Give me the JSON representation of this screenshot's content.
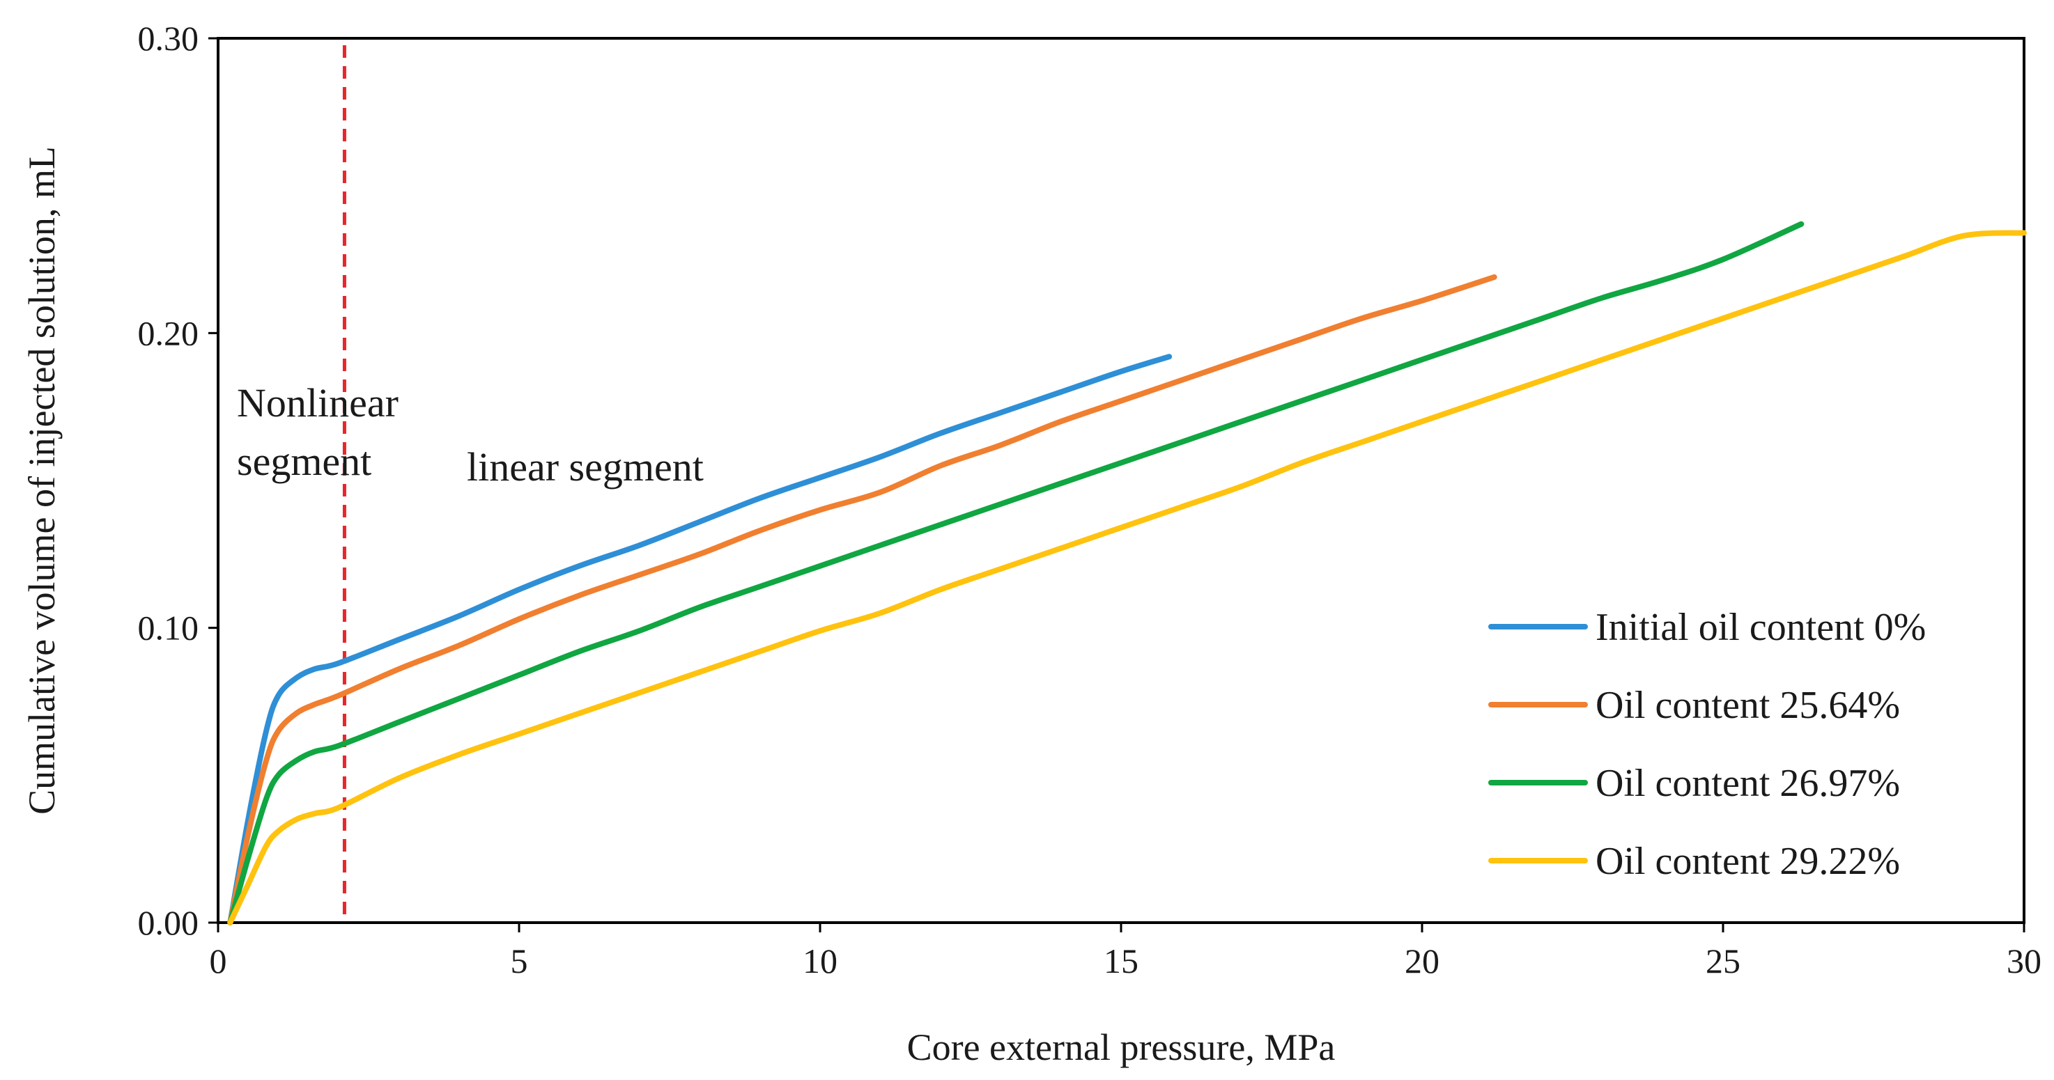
{
  "chart_data": {
    "type": "line",
    "title": "",
    "xlabel": "Core external pressure,  MPa",
    "ylabel": "Cumulative volume of injected solution,   mL",
    "xlim": [
      0,
      30
    ],
    "ylim": [
      0,
      0.3
    ],
    "x_ticks": [
      0,
      5,
      10,
      15,
      20,
      25,
      30
    ],
    "x_tick_labels": [
      "0",
      "5",
      "10",
      "15",
      "20",
      "25",
      "30"
    ],
    "y_ticks": [
      0,
      0.1,
      0.2,
      0.3
    ],
    "y_tick_labels": [
      "0.00",
      "0.10",
      "0.20",
      "0.30"
    ],
    "grid": false,
    "legend_position": "bottom-right",
    "series": [
      {
        "name": "Initial oil content 0%",
        "color": "#2E8FD6",
        "points": [
          [
            0.2,
            0
          ],
          [
            0.5,
            0.035
          ],
          [
            0.8,
            0.065
          ],
          [
            1.0,
            0.077
          ],
          [
            1.3,
            0.083
          ],
          [
            1.6,
            0.086
          ],
          [
            2.0,
            0.088
          ],
          [
            3,
            0.096
          ],
          [
            4,
            0.104
          ],
          [
            5,
            0.113
          ],
          [
            6,
            0.121
          ],
          [
            7,
            0.128
          ],
          [
            8,
            0.136
          ],
          [
            9,
            0.144
          ],
          [
            10,
            0.151
          ],
          [
            11,
            0.158
          ],
          [
            12,
            0.166
          ],
          [
            13,
            0.173
          ],
          [
            14,
            0.18
          ],
          [
            15,
            0.187
          ],
          [
            15.8,
            0.192
          ]
        ]
      },
      {
        "name": "Oil content  25.64%",
        "color": "#F07F30",
        "points": [
          [
            0.2,
            0
          ],
          [
            0.5,
            0.03
          ],
          [
            0.8,
            0.055
          ],
          [
            1.0,
            0.065
          ],
          [
            1.3,
            0.071
          ],
          [
            1.6,
            0.074
          ],
          [
            2.0,
            0.077
          ],
          [
            3,
            0.086
          ],
          [
            4,
            0.094
          ],
          [
            5,
            0.103
          ],
          [
            6,
            0.111
          ],
          [
            7,
            0.118
          ],
          [
            8,
            0.125
          ],
          [
            9,
            0.133
          ],
          [
            10,
            0.14
          ],
          [
            11,
            0.146
          ],
          [
            12,
            0.155
          ],
          [
            13,
            0.162
          ],
          [
            14,
            0.17
          ],
          [
            15,
            0.177
          ],
          [
            16,
            0.184
          ],
          [
            17,
            0.191
          ],
          [
            18,
            0.198
          ],
          [
            19,
            0.205
          ],
          [
            20,
            0.211
          ],
          [
            21.2,
            0.219
          ]
        ]
      },
      {
        "name": "Oil content  26.97%",
        "color": "#10A642",
        "points": [
          [
            0.2,
            0
          ],
          [
            0.5,
            0.022
          ],
          [
            0.8,
            0.042
          ],
          [
            1.0,
            0.05
          ],
          [
            1.3,
            0.055
          ],
          [
            1.6,
            0.058
          ],
          [
            2.0,
            0.06
          ],
          [
            3,
            0.068
          ],
          [
            4,
            0.076
          ],
          [
            5,
            0.084
          ],
          [
            6,
            0.092
          ],
          [
            7,
            0.099
          ],
          [
            8,
            0.107
          ],
          [
            9,
            0.114
          ],
          [
            10,
            0.121
          ],
          [
            11,
            0.128
          ],
          [
            12,
            0.135
          ],
          [
            13,
            0.142
          ],
          [
            14,
            0.149
          ],
          [
            15,
            0.156
          ],
          [
            16,
            0.163
          ],
          [
            17,
            0.17
          ],
          [
            18,
            0.177
          ],
          [
            19,
            0.184
          ],
          [
            20,
            0.191
          ],
          [
            21,
            0.198
          ],
          [
            22,
            0.205
          ],
          [
            23,
            0.212
          ],
          [
            24,
            0.218
          ],
          [
            25,
            0.225
          ],
          [
            26.3,
            0.237
          ]
        ]
      },
      {
        "name": "Oil content  29.22%",
        "color": "#FFC20E",
        "points": [
          [
            0.2,
            0
          ],
          [
            0.5,
            0.013
          ],
          [
            0.8,
            0.026
          ],
          [
            1.0,
            0.031
          ],
          [
            1.3,
            0.035
          ],
          [
            1.6,
            0.037
          ],
          [
            2.0,
            0.039
          ],
          [
            3,
            0.049
          ],
          [
            4,
            0.057
          ],
          [
            5,
            0.064
          ],
          [
            6,
            0.071
          ],
          [
            7,
            0.078
          ],
          [
            8,
            0.085
          ],
          [
            9,
            0.092
          ],
          [
            10,
            0.099
          ],
          [
            11,
            0.105
          ],
          [
            12,
            0.113
          ],
          [
            13,
            0.12
          ],
          [
            14,
            0.127
          ],
          [
            15,
            0.134
          ],
          [
            16,
            0.141
          ],
          [
            17,
            0.148
          ],
          [
            18,
            0.156
          ],
          [
            19,
            0.163
          ],
          [
            20,
            0.17
          ],
          [
            21,
            0.177
          ],
          [
            22,
            0.184
          ],
          [
            23,
            0.191
          ],
          [
            24,
            0.198
          ],
          [
            25,
            0.205
          ],
          [
            26,
            0.212
          ],
          [
            27,
            0.219
          ],
          [
            28,
            0.226
          ],
          [
            29,
            0.233
          ],
          [
            30,
            0.234
          ]
        ]
      }
    ],
    "divider": {
      "x": 2.1,
      "color": "#E8262B"
    },
    "annotations": {
      "nonlinear_line1": "Nonlinear",
      "nonlinear_line2": "segment",
      "linear": "linear segment"
    }
  }
}
